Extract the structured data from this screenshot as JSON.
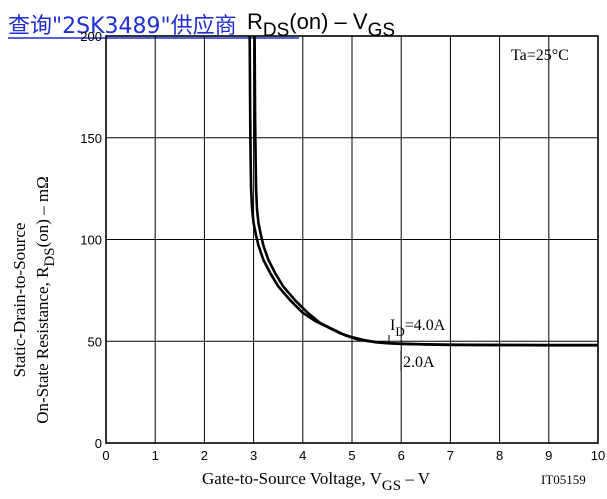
{
  "link_text": "查询\"2SK3489\"供应商",
  "chart_data": {
    "type": "line",
    "title": {
      "main": "R",
      "sub": "DS",
      "rest": "(on)  –  V",
      "sub2": "GS"
    },
    "condition_label": "Ta=25°C",
    "figure_id": "IT05159",
    "xlabel": {
      "main": "Gate-to-Source Voltage, V",
      "sub": "GS",
      "rest": "  –  V"
    },
    "ylabel": {
      "line1": "Static-Drain-to-Source",
      "line2_main": "On-State Resistance, R",
      "line2_sub": "DS",
      "line2_rest": "(on)  –  mΩ"
    },
    "xlim": [
      0,
      10
    ],
    "ylim": [
      0,
      200
    ],
    "x_ticks": [
      "0",
      "1",
      "2",
      "3",
      "4",
      "5",
      "6",
      "7",
      "8",
      "9",
      "10"
    ],
    "y_ticks": [
      {
        "value": 0,
        "label": "0"
      },
      {
        "value": 50,
        "label": "50"
      },
      {
        "value": 100,
        "label": "100"
      },
      {
        "value": 150,
        "label": "150"
      },
      {
        "value": 200,
        "label": "200"
      }
    ],
    "grid": true,
    "series": [
      {
        "name": "ID=4.0A",
        "label_main": "I",
        "label_sub": "D",
        "label_rest": "=4.0A",
        "x": [
          2.92,
          2.93,
          2.94,
          2.95,
          2.97,
          3.0,
          3.05,
          3.1,
          3.2,
          3.35,
          3.5,
          3.75,
          4.0,
          4.25,
          4.5,
          4.75,
          5.0,
          5.25,
          5.5,
          5.75,
          6.0,
          6.5,
          7.0,
          8.0,
          9.0,
          10.0
        ],
        "y": [
          200,
          160,
          140,
          125,
          115,
          108,
          102,
          97,
          90,
          83,
          77,
          70,
          64,
          60,
          57,
          54,
          52,
          50.5,
          49.5,
          49,
          48.8,
          48.5,
          48.3,
          48.2,
          48.1,
          48.1
        ]
      },
      {
        "name": "2.0A",
        "label_main": "2.0A",
        "x": [
          3.02,
          3.03,
          3.04,
          3.05,
          3.07,
          3.1,
          3.15,
          3.2,
          3.3,
          3.45,
          3.6,
          3.85,
          4.1,
          4.35,
          4.6,
          4.85,
          5.1,
          5.35,
          5.6,
          5.85,
          6.0,
          6.5,
          7.0,
          8.0,
          9.0,
          10.0
        ],
        "y": [
          200,
          160,
          140,
          125,
          115,
          108,
          102,
          97,
          90,
          83,
          77,
          70,
          64,
          59,
          56,
          53,
          51,
          50,
          49.3,
          48.9,
          48.7,
          48.4,
          48.2,
          48.1,
          48.0,
          48.0
        ]
      }
    ]
  }
}
